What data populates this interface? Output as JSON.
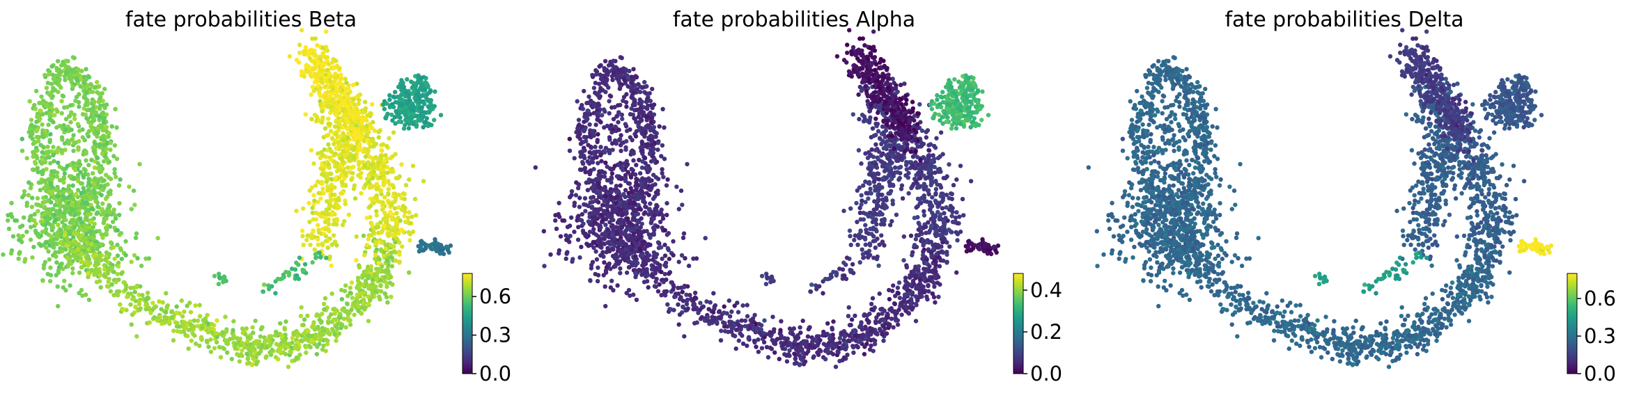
{
  "figure": {
    "panels": [
      {
        "title": "fate probabilities Beta",
        "colorbar": {
          "min": 0.0,
          "max": 0.78,
          "ticks": [
            "0.0",
            "0.3",
            "0.6"
          ],
          "tick_values": [
            0.0,
            0.3,
            0.6
          ]
        },
        "region_values": {
          "left_loop": 0.62,
          "left_blob": 0.62,
          "bottom_arc": 0.66,
          "right_upper_arm": 0.74,
          "top_arm": 0.77,
          "right_cluster": 0.45,
          "small_tail": 0.3,
          "isolated_bits": 0.55
        }
      },
      {
        "title": "fate probabilities Alpha",
        "colorbar": {
          "min": 0.0,
          "max": 0.48,
          "ticks": [
            "0.0",
            "0.2",
            "0.4"
          ],
          "tick_values": [
            0.0,
            0.2,
            0.4
          ]
        },
        "region_values": {
          "left_loop": 0.06,
          "left_blob": 0.06,
          "bottom_arc": 0.06,
          "right_upper_arm": 0.08,
          "top_arm": 0.02,
          "right_cluster": 0.33,
          "small_tail": 0.02,
          "isolated_bits": 0.08
        }
      },
      {
        "title": "fate probabilities Delta",
        "colorbar": {
          "min": 0.0,
          "max": 0.8,
          "ticks": [
            "0.0",
            "0.3",
            "0.6"
          ],
          "tick_values": [
            0.0,
            0.3,
            0.6
          ]
        },
        "region_values": {
          "left_loop": 0.27,
          "left_blob": 0.27,
          "bottom_arc": 0.27,
          "right_upper_arm": 0.24,
          "top_arm": 0.14,
          "right_cluster": 0.22,
          "small_tail": 0.8,
          "isolated_bits": 0.45
        }
      }
    ],
    "colormap": "viridis",
    "colormap_stops": [
      "#440154",
      "#482878",
      "#3e4989",
      "#31688e",
      "#26828e",
      "#1f9e89",
      "#35b779",
      "#6ece58",
      "#b5de2b",
      "#fde725"
    ]
  },
  "chart_data": [
    {
      "type": "scatter",
      "title": "fate probabilities Beta",
      "color_variable_range": [
        0.0,
        0.78
      ],
      "colorbar_ticks": [
        0.0,
        0.3,
        0.6
      ],
      "point_colors_by_region": {
        "left_loop": 0.62,
        "left_blob": 0.62,
        "bottom_arc": 0.66,
        "right_upper_arm": 0.74,
        "top_arm": 0.77,
        "right_cluster": 0.45,
        "small_tail": 0.3
      }
    },
    {
      "type": "scatter",
      "title": "fate probabilities Alpha",
      "color_variable_range": [
        0.0,
        0.48
      ],
      "colorbar_ticks": [
        0.0,
        0.2,
        0.4
      ],
      "point_colors_by_region": {
        "left_loop": 0.06,
        "left_blob": 0.06,
        "bottom_arc": 0.06,
        "right_upper_arm": 0.08,
        "top_arm": 0.02,
        "right_cluster": 0.33,
        "small_tail": 0.02
      }
    },
    {
      "type": "scatter",
      "title": "fate probabilities Delta",
      "color_variable_range": [
        0.0,
        0.8
      ],
      "colorbar_ticks": [
        0.0,
        0.3,
        0.6
      ],
      "point_colors_by_region": {
        "left_loop": 0.27,
        "left_blob": 0.27,
        "bottom_arc": 0.27,
        "right_upper_arm": 0.24,
        "top_arm": 0.14,
        "right_cluster": 0.22,
        "small_tail": 0.8
      }
    }
  ]
}
